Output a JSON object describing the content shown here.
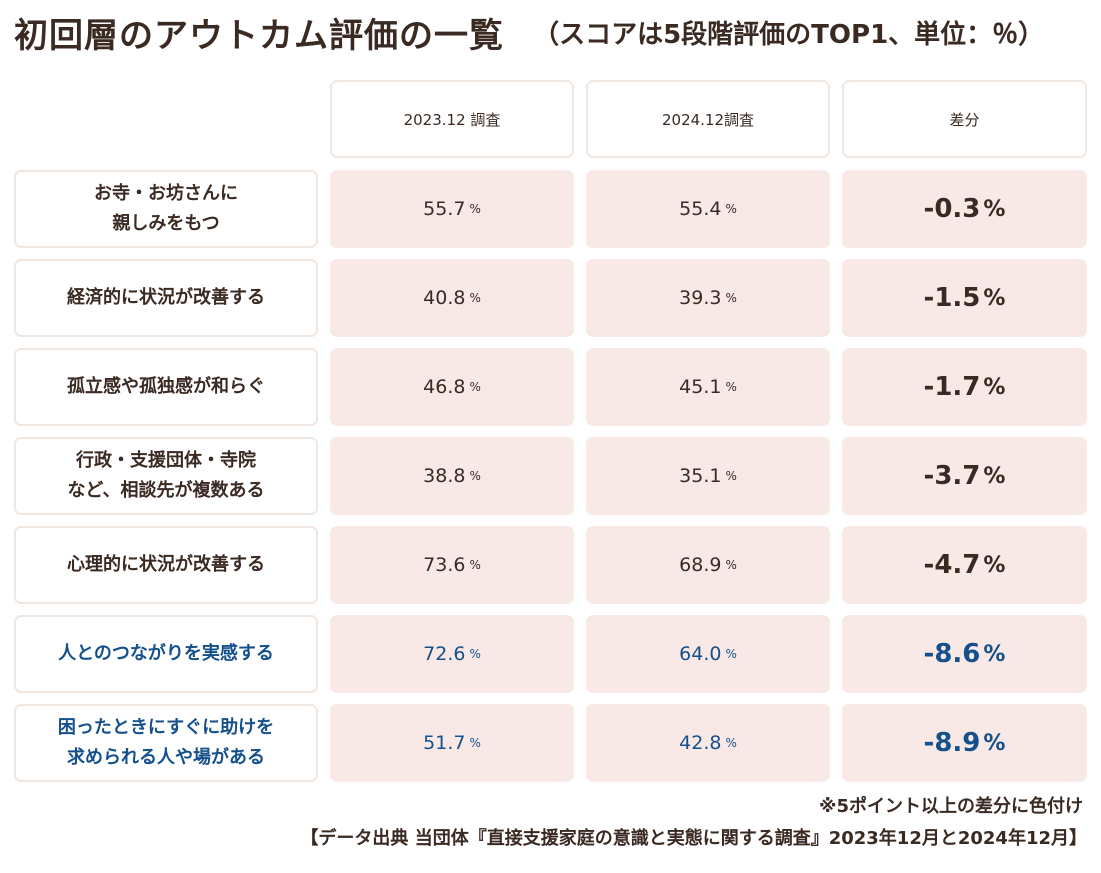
{
  "title": "初回層のアウトカム評価の一覧",
  "subtitle": "（スコアは5段階評価のTOP1、単位：％）",
  "columns": [
    "2023.12 調査",
    "2024.12調査",
    "差分"
  ],
  "unit": "%",
  "colors": {
    "highlight": "#14508c",
    "text": "#3a2a22",
    "cell_bg": "#f9e9e6",
    "border": "#efe7e0"
  },
  "chart_data": {
    "type": "table",
    "title": "初回層のアウトカム評価の一覧",
    "columns": [
      "2023.12 調査",
      "2024.12調査",
      "差分"
    ],
    "rows": [
      {
        "label": "お寺・お坊さんに\n親しみをもつ",
        "y2023": "55.7",
        "y2024": "55.4",
        "diff": "-0.3",
        "highlight": false
      },
      {
        "label": "経済的に状況が改善する",
        "y2023": "40.8",
        "y2024": "39.3",
        "diff": "-1.5",
        "highlight": false
      },
      {
        "label": "孤立感や孤独感が和らぐ",
        "y2023": "46.8",
        "y2024": "45.1",
        "diff": "-1.7",
        "highlight": false
      },
      {
        "label": "行政・支援団体・寺院\nなど、相談先が複数ある",
        "y2023": "38.8",
        "y2024": "35.1",
        "diff": "-3.7",
        "highlight": false
      },
      {
        "label": "心理的に状況が改善する",
        "y2023": "73.6",
        "y2024": "68.9",
        "diff": "-4.7",
        "highlight": false
      },
      {
        "label": "人とのつながりを実感する",
        "y2023": "72.6",
        "y2024": "64.0",
        "diff": "-8.6",
        "highlight": true
      },
      {
        "label": "困ったときにすぐに助けを\n求められる人や場がある",
        "y2023": "51.7",
        "y2024": "42.8",
        "diff": "-8.9",
        "highlight": true
      }
    ]
  },
  "note": "※5ポイント以上の差分に色付け",
  "source": "【データ出典 当団体『直接支援家庭の意識と実態に関する調査』2023年12月と2024年12月】"
}
